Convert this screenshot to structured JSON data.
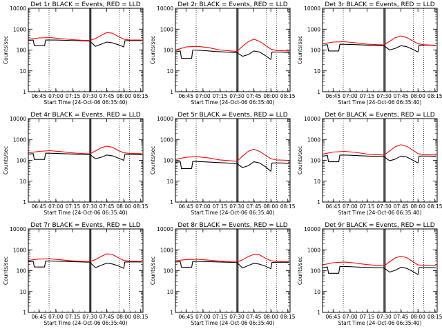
{
  "figure": {
    "background": "#ffffff",
    "colors": {
      "events": "#000000",
      "lld": "#ff0000",
      "axes": "#000000"
    },
    "x_ticks": [
      "06:45",
      "07:00",
      "07:15",
      "07:30",
      "07:45",
      "08:00",
      "08:15"
    ],
    "y_ticks": [
      "1",
      "10",
      "100",
      "1000",
      "10000"
    ],
    "xlabel": "Start Time (24-Oct-06 06:35:40)",
    "ylabel": "Counts/sec"
  },
  "chart_data": [
    {
      "type": "line",
      "title": "Det 1r BLACK = Events, RED = LLD",
      "xlabel": "Start Time (24-Oct-06 06:35:40)",
      "ylabel": "Counts/sec",
      "y_scale": "log",
      "xlim": [
        "06:35:40",
        "08:17:00"
      ],
      "ylim": [
        1,
        10000
      ],
      "vertical_markers": [
        "06:54",
        "07:30",
        "07:31",
        "07:56",
        "08:05"
      ],
      "series": [
        {
          "name": "Events",
          "color": "#000000",
          "x": [
            "06:36",
            "06:40",
            "06:41",
            "06:50",
            "06:51",
            "07:00",
            "07:10",
            "07:20",
            "07:30",
            "07:35",
            "07:40",
            "07:45",
            "07:50",
            "07:55",
            "08:00",
            "08:01",
            "08:10",
            "08:16"
          ],
          "y": [
            290,
            300,
            160,
            160,
            300,
            300,
            290,
            280,
            270,
            150,
            190,
            240,
            220,
            180,
            140,
            280,
            285,
            280
          ]
        },
        {
          "name": "LLD",
          "color": "#ff0000",
          "x": [
            "06:36",
            "06:45",
            "06:55",
            "07:05",
            "07:15",
            "07:25",
            "07:30",
            "07:35",
            "07:40",
            "07:45",
            "07:50",
            "07:55",
            "08:00",
            "08:05",
            "08:16"
          ],
          "y": [
            330,
            380,
            390,
            350,
            310,
            290,
            290,
            350,
            500,
            680,
            640,
            450,
            330,
            300,
            300
          ]
        }
      ]
    },
    {
      "type": "line",
      "title": "Det 2r BLACK = Events, RED = LLD",
      "xlabel": "Start Time (24-Oct-06 06:35:40)",
      "ylabel": "Counts/sec",
      "y_scale": "log",
      "xlim": [
        "06:35:40",
        "08:17:00"
      ],
      "ylim": [
        1,
        10000
      ],
      "vertical_markers": [
        "06:54",
        "07:30",
        "07:31",
        "07:56",
        "08:05"
      ],
      "series": [
        {
          "name": "Events",
          "color": "#000000",
          "x": [
            "06:36",
            "06:40",
            "06:41",
            "06:50",
            "06:51",
            "07:00",
            "07:10",
            "07:20",
            "07:30",
            "07:35",
            "07:40",
            "07:45",
            "07:50",
            "07:55",
            "08:00",
            "08:01",
            "08:10",
            "08:16"
          ],
          "y": [
            80,
            90,
            40,
            40,
            100,
            95,
            85,
            80,
            75,
            50,
            60,
            90,
            80,
            55,
            35,
            80,
            80,
            75
          ]
        },
        {
          "name": "LLD",
          "color": "#ff0000",
          "x": [
            "06:36",
            "06:45",
            "06:55",
            "07:05",
            "07:15",
            "07:25",
            "07:30",
            "07:35",
            "07:40",
            "07:45",
            "07:50",
            "07:55",
            "08:00",
            "08:05",
            "08:16"
          ],
          "y": [
            100,
            140,
            150,
            130,
            100,
            90,
            85,
            150,
            250,
            330,
            260,
            170,
            110,
            95,
            90
          ]
        }
      ]
    },
    {
      "type": "line",
      "title": "Det 3r BLACK = Events, RED = LLD",
      "xlabel": "Start Time (24-Oct-06 06:35:40)",
      "ylabel": "Counts/sec",
      "y_scale": "log",
      "xlim": [
        "06:35:40",
        "08:17:00"
      ],
      "ylim": [
        1,
        10000
      ],
      "vertical_markers": [
        "06:54",
        "07:30",
        "07:31",
        "07:56",
        "08:05"
      ],
      "series": [
        {
          "name": "Events",
          "color": "#000000",
          "x": [
            "06:36",
            "06:40",
            "06:41",
            "06:50",
            "06:51",
            "07:00",
            "07:10",
            "07:20",
            "07:30",
            "07:35",
            "07:40",
            "07:45",
            "07:50",
            "07:55",
            "08:00",
            "08:01",
            "08:10",
            "08:16"
          ],
          "y": [
            170,
            180,
            90,
            90,
            190,
            185,
            175,
            165,
            160,
            100,
            120,
            160,
            145,
            110,
            80,
            170,
            170,
            165
          ]
        },
        {
          "name": "LLD",
          "color": "#ff0000",
          "x": [
            "06:36",
            "06:45",
            "06:55",
            "07:05",
            "07:15",
            "07:25",
            "07:30",
            "07:35",
            "07:40",
            "07:45",
            "07:50",
            "07:55",
            "08:00",
            "08:05",
            "08:16"
          ],
          "y": [
            200,
            240,
            250,
            220,
            190,
            180,
            175,
            260,
            390,
            470,
            400,
            280,
            200,
            180,
            170
          ]
        }
      ]
    },
    {
      "type": "line",
      "title": "Det 4r BLACK = Events, RED = LLD",
      "xlabel": "Start Time (24-Oct-06 06:35:40)",
      "ylabel": "Counts/sec",
      "y_scale": "log",
      "xlim": [
        "06:35:40",
        "08:17:00"
      ],
      "ylim": [
        1,
        10000
      ],
      "vertical_markers": [
        "06:54",
        "07:30",
        "07:31",
        "07:56",
        "08:05"
      ],
      "series": [
        {
          "name": "Events",
          "color": "#000000",
          "x": [
            "06:36",
            "06:40",
            "06:41",
            "06:50",
            "06:51",
            "07:00",
            "07:10",
            "07:20",
            "07:30",
            "07:35",
            "07:40",
            "07:45",
            "07:50",
            "07:55",
            "08:00",
            "08:01",
            "08:10",
            "08:16"
          ],
          "y": [
            200,
            210,
            110,
            110,
            220,
            215,
            205,
            195,
            190,
            120,
            140,
            180,
            165,
            130,
            100,
            190,
            190,
            185
          ]
        },
        {
          "name": "LLD",
          "color": "#ff0000",
          "x": [
            "06:36",
            "06:45",
            "06:55",
            "07:05",
            "07:15",
            "07:25",
            "07:30",
            "07:35",
            "07:40",
            "07:45",
            "07:50",
            "07:55",
            "08:00",
            "08:05",
            "08:16"
          ],
          "y": [
            230,
            270,
            290,
            260,
            225,
            210,
            205,
            280,
            400,
            480,
            420,
            300,
            230,
            215,
            210
          ]
        }
      ]
    },
    {
      "type": "line",
      "title": "Det 5r BLACK = Events, RED = LLD",
      "xlabel": "Start Time (24-Oct-06 06:35:40)",
      "ylabel": "Counts/sec",
      "y_scale": "log",
      "xlim": [
        "06:35:40",
        "08:17:00"
      ],
      "ylim": [
        1,
        10000
      ],
      "vertical_markers": [
        "06:54",
        "07:30",
        "07:31",
        "07:56",
        "08:05"
      ],
      "series": [
        {
          "name": "Events",
          "color": "#000000",
          "x": [
            "06:36",
            "06:40",
            "06:41",
            "06:50",
            "06:51",
            "07:00",
            "07:10",
            "07:20",
            "07:30",
            "07:35",
            "07:40",
            "07:45",
            "07:50",
            "07:55",
            "08:00",
            "08:01",
            "08:10",
            "08:16"
          ],
          "y": [
            80,
            85,
            40,
            40,
            90,
            85,
            80,
            75,
            70,
            45,
            55,
            85,
            75,
            50,
            30,
            75,
            75,
            70
          ]
        },
        {
          "name": "LLD",
          "color": "#ff0000",
          "x": [
            "06:36",
            "06:45",
            "06:55",
            "07:05",
            "07:15",
            "07:25",
            "07:30",
            "07:35",
            "07:40",
            "07:45",
            "07:50",
            "07:55",
            "08:00",
            "08:05",
            "08:16"
          ],
          "y": [
            110,
            140,
            150,
            130,
            105,
            95,
            90,
            160,
            270,
            340,
            270,
            180,
            120,
            105,
            100
          ]
        }
      ]
    },
    {
      "type": "line",
      "title": "Det 6r BLACK = Events, RED = LLD",
      "xlabel": "Start Time (24-Oct-06 06:35:40)",
      "ylabel": "Counts/sec",
      "y_scale": "log",
      "xlim": [
        "06:35:40",
        "08:17:00"
      ],
      "ylim": [
        1,
        10000
      ],
      "vertical_markers": [
        "06:54",
        "07:30",
        "07:31",
        "07:56",
        "08:05"
      ],
      "series": [
        {
          "name": "Events",
          "color": "#000000",
          "x": [
            "06:36",
            "06:40",
            "06:41",
            "06:50",
            "06:51",
            "07:00",
            "07:10",
            "07:20",
            "07:30",
            "07:35",
            "07:40",
            "07:45",
            "07:50",
            "07:55",
            "08:00",
            "08:01",
            "08:10",
            "08:16"
          ],
          "y": [
            160,
            170,
            85,
            85,
            180,
            175,
            165,
            155,
            150,
            95,
            115,
            160,
            145,
            105,
            75,
            160,
            160,
            155
          ]
        },
        {
          "name": "LLD",
          "color": "#ff0000",
          "x": [
            "06:36",
            "06:45",
            "06:55",
            "07:05",
            "07:15",
            "07:25",
            "07:30",
            "07:35",
            "07:40",
            "07:45",
            "07:50",
            "07:55",
            "08:00",
            "08:05",
            "08:16"
          ],
          "y": [
            200,
            250,
            270,
            240,
            200,
            185,
            180,
            280,
            450,
            560,
            470,
            320,
            210,
            190,
            180
          ]
        }
      ]
    },
    {
      "type": "line",
      "title": "Det 7r BLACK = Events, RED = LLD",
      "xlabel": "Start Time (24-Oct-06 06:35:40)",
      "ylabel": "Counts/sec",
      "y_scale": "log",
      "xlim": [
        "06:35:40",
        "08:17:00"
      ],
      "ylim": [
        1,
        10000
      ],
      "vertical_markers": [
        "06:54",
        "07:30",
        "07:31",
        "07:56",
        "08:05"
      ],
      "series": [
        {
          "name": "Events",
          "color": "#000000",
          "x": [
            "06:36",
            "06:40",
            "06:41",
            "06:50",
            "06:51",
            "07:00",
            "07:10",
            "07:20",
            "07:30",
            "07:35",
            "07:40",
            "07:45",
            "07:50",
            "07:55",
            "08:00",
            "08:01",
            "08:10",
            "08:16"
          ],
          "y": [
            270,
            280,
            150,
            150,
            290,
            285,
            275,
            265,
            255,
            140,
            180,
            230,
            210,
            170,
            130,
            260,
            265,
            260
          ]
        },
        {
          "name": "LLD",
          "color": "#ff0000",
          "x": [
            "06:36",
            "06:45",
            "06:55",
            "07:05",
            "07:15",
            "07:25",
            "07:30",
            "07:35",
            "07:40",
            "07:45",
            "07:50",
            "07:55",
            "08:00",
            "08:05",
            "08:16"
          ],
          "y": [
            310,
            360,
            370,
            330,
            295,
            275,
            270,
            340,
            480,
            640,
            600,
            420,
            310,
            285,
            280
          ]
        }
      ]
    },
    {
      "type": "line",
      "title": "Det 8r BLACK = Events, RED = LLD",
      "xlabel": "Start Time (24-Oct-06 06:35:40)",
      "ylabel": "Counts/sec",
      "y_scale": "log",
      "xlim": [
        "06:35:40",
        "08:17:00"
      ],
      "ylim": [
        1,
        10000
      ],
      "vertical_markers": [
        "06:54",
        "07:30",
        "07:31",
        "07:56",
        "08:05"
      ],
      "series": [
        {
          "name": "Events",
          "color": "#000000",
          "x": [
            "06:36",
            "06:40",
            "06:41",
            "06:50",
            "06:51",
            "07:00",
            "07:10",
            "07:20",
            "07:30",
            "07:35",
            "07:40",
            "07:45",
            "07:50",
            "07:55",
            "08:00",
            "08:01",
            "08:10",
            "08:16"
          ],
          "y": [
            260,
            270,
            145,
            145,
            280,
            275,
            265,
            255,
            245,
            135,
            175,
            225,
            205,
            165,
            125,
            250,
            255,
            250
          ]
        },
        {
          "name": "LLD",
          "color": "#ff0000",
          "x": [
            "06:36",
            "06:45",
            "06:55",
            "07:05",
            "07:15",
            "07:25",
            "07:30",
            "07:35",
            "07:40",
            "07:45",
            "07:50",
            "07:55",
            "08:00",
            "08:05",
            "08:16"
          ],
          "y": [
            300,
            340,
            350,
            320,
            285,
            265,
            260,
            330,
            470,
            610,
            570,
            400,
            300,
            275,
            270
          ]
        }
      ]
    },
    {
      "type": "line",
      "title": "Det 9r BLACK = Events, RED = LLD",
      "xlabel": "Start Time (24-Oct-06 06:35:40)",
      "ylabel": "Counts/sec",
      "y_scale": "log",
      "xlim": [
        "06:35:40",
        "08:17:00"
      ],
      "ylim": [
        1,
        10000
      ],
      "vertical_markers": [
        "06:54",
        "07:30",
        "07:31",
        "07:56",
        "08:05"
      ],
      "series": [
        {
          "name": "Events",
          "color": "#000000",
          "x": [
            "06:36",
            "06:40",
            "06:41",
            "06:50",
            "06:51",
            "07:00",
            "07:10",
            "07:20",
            "07:30",
            "07:35",
            "07:40",
            "07:45",
            "07:50",
            "07:55",
            "08:00",
            "08:01",
            "08:10",
            "08:16"
          ],
          "y": [
            140,
            150,
            75,
            75,
            160,
            155,
            145,
            140,
            135,
            85,
            105,
            145,
            130,
            95,
            65,
            140,
            140,
            135
          ]
        },
        {
          "name": "LLD",
          "color": "#ff0000",
          "x": [
            "06:36",
            "06:45",
            "06:55",
            "07:05",
            "07:15",
            "07:25",
            "07:30",
            "07:35",
            "07:40",
            "07:45",
            "07:50",
            "07:55",
            "08:00",
            "08:05",
            "08:16"
          ],
          "y": [
            190,
            240,
            260,
            230,
            195,
            175,
            170,
            270,
            410,
            500,
            420,
            280,
            190,
            175,
            170
          ]
        }
      ]
    }
  ]
}
